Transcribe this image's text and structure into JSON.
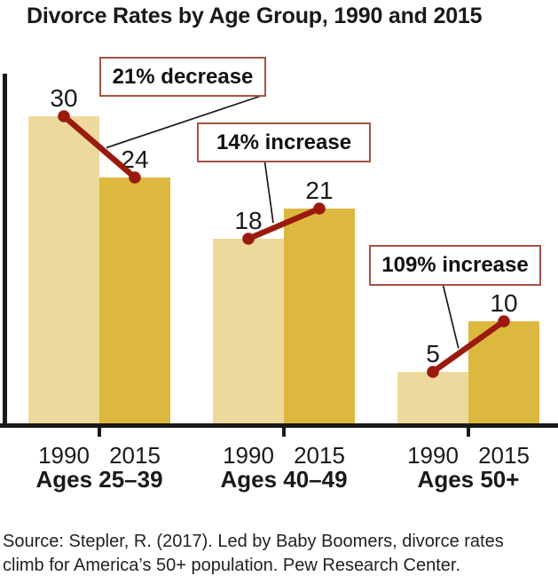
{
  "title": "Divorce Rates by Age Group, 1990 and 2015",
  "source": {
    "line1": "Source: Stepler, R. (2017). Led by Baby Boomers, divorce rates",
    "line2": "climb for America’s 50+ population. Pew Research Center."
  },
  "colors": {
    "bar_1990": "#EDD99C",
    "bar_2015": "#DDB83E",
    "trend_line": "#9A1B0E",
    "annotation_border": "#A65245",
    "axis": "#1a1a1a"
  },
  "chart_data": {
    "type": "bar",
    "title": "Divorce Rates by Age Group, 1990 and 2015",
    "categories": [
      "Ages 25–39",
      "Ages 40–49",
      "Ages 50+"
    ],
    "series": [
      {
        "name": "1990",
        "values": [
          30,
          18,
          5
        ]
      },
      {
        "name": "2015",
        "values": [
          24,
          21,
          10
        ]
      }
    ],
    "annotations": [
      {
        "label": "21% decrease",
        "group": "Ages 25–39",
        "from": 30,
        "to": 24
      },
      {
        "label": "14% increase",
        "group": "Ages 40–49",
        "from": 18,
        "to": 21
      },
      {
        "label": "109% increase",
        "group": "Ages 50+",
        "from": 5,
        "to": 10
      }
    ],
    "xlabel": "",
    "ylabel": "",
    "ylim": [
      0,
      34
    ],
    "grid": false,
    "legend": "none (series years labeled under each bar)",
    "bar_value_labels": true
  }
}
